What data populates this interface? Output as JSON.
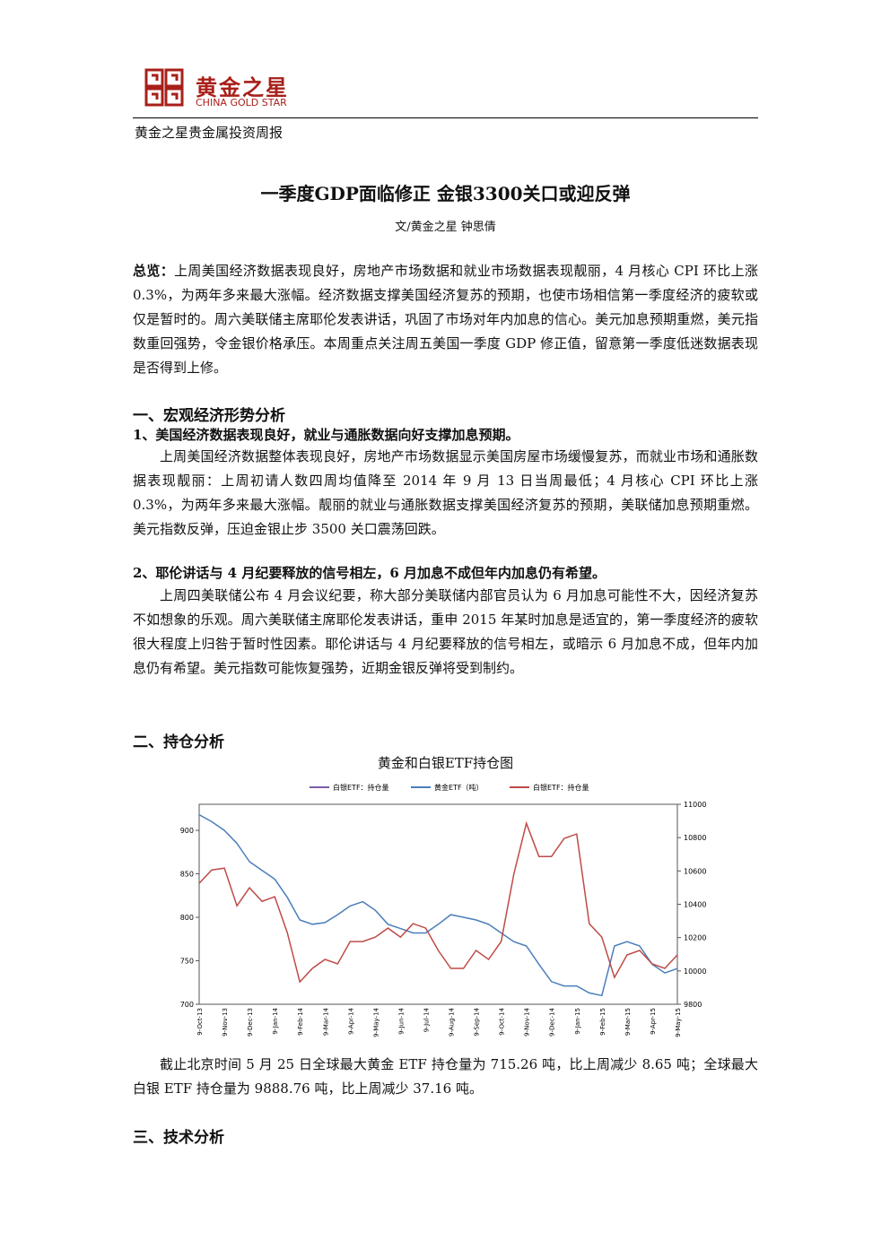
{
  "header": {
    "logo_cn": "黄金之星",
    "logo_en": "CHINA GOLD STAR",
    "report": "黄金之星贵金属投资周报"
  },
  "title": "一季度GDP面临修正 金银3300关口或迎反弹",
  "author": "文/黄金之星 钟思倩",
  "summary": {
    "label": "总览：",
    "text": "上周美国经济数据表现良好，房地产市场数据和就业市场数据表现靓丽，4 月核心 CPI 环比上涨 0.3%，为两年多来最大涨幅。经济数据支撑美国经济复苏的预期，也使市场相信第一季度经济的疲软或仅是暂时的。周六美联储主席耶伦发表讲话，巩固了市场对年内加息的信心。美元加息预期重燃，美元指数重回强势，令金银价格承压。本周重点关注周五美国一季度 GDP 修正值，留意第一季度低迷数据表现是否得到上修。"
  },
  "section1": {
    "heading": "一、宏观经济形势分析",
    "sub1": "1、美国经济数据表现良好，就业与通胀数据向好支撑加息预期。",
    "para1": "上周美国经济数据整体表现良好，房地产市场数据显示美国房屋市场缓慢复苏，而就业市场和通胀数据表现靓丽：上周初请人数四周均值降至 2014 年 9 月 13 日当周最低；4 月核心 CPI 环比上涨 0.3%，为两年多来最大涨幅。靓丽的就业与通胀数据支撑美国经济复苏的预期，美联储加息预期重燃。美元指数反弹，压迫金银止步 3500 关口震荡回跌。",
    "sub2": "2、耶伦讲话与 4 月纪要释放的信号相左，6 月加息不成但年内加息仍有希望。",
    "para2": "上周四美联储公布 4 月会议纪要，称大部分美联储内部官员认为 6 月加息可能性不大，因经济复苏不如想象的乐观。周六美联储主席耶伦发表讲话，重申 2015 年某时加息是适宜的，第一季度经济的疲软很大程度上归咎于暂时性因素。耶伦讲话与 4 月纪要释放的信号相左，或暗示 6 月加息不成，但年内加息仍有希望。美元指数可能恢复强势，近期金银反弹将受到制约。"
  },
  "section2": {
    "heading": "二、持仓分析",
    "para": "截止北京时间 5 月 25 日全球最大黄金 ETF 持仓量为 715.26 吨，比上周减少 8.65 吨；全球最大白银 ETF 持仓量为 9888.76 吨，比上周减少 37.16 吨。"
  },
  "section3": {
    "heading": "三、技术分析"
  },
  "chart_data": {
    "type": "line",
    "title": "黄金和白银ETF持仓图",
    "categories": [
      "9-Oct-13",
      null,
      "9-Nov-13",
      null,
      "9-Dec-13",
      null,
      "9-Jan-14",
      null,
      "9-Feb-14",
      null,
      "9-Mar-14",
      null,
      "9-Apr-14",
      null,
      "9-May-14",
      null,
      "9-Jun-14",
      null,
      "9-Jul-14",
      null,
      "9-Aug-14",
      null,
      "9-Sep-14",
      null,
      "9-Oct-14",
      null,
      "9-Nov-14",
      null,
      "9-Dec-14",
      null,
      "9-Jan-15",
      null,
      "9-Feb-15",
      null,
      "9-Mar-15",
      null,
      "9-Apr-15",
      null,
      "9-May-15"
    ],
    "series": [
      {
        "name": "白银ETF：持仓量",
        "color": "#7b5ea7",
        "axis": "y2",
        "values": [
          null,
          null,
          null,
          null,
          null,
          null,
          null,
          null,
          null,
          null,
          null,
          null,
          null,
          null,
          null,
          null,
          null,
          null,
          null,
          null,
          null,
          null,
          null,
          null,
          null,
          null,
          null,
          null,
          null,
          null,
          null,
          null,
          null,
          null,
          null,
          null,
          null,
          null,
          null
        ]
      },
      {
        "name": "黄金ETF（吨）",
        "color": "#4a7ebb",
        "values": [
          918,
          910,
          900,
          885,
          864,
          854,
          844,
          823,
          797,
          792,
          794,
          803,
          813,
          818,
          808,
          792,
          787,
          782,
          782,
          792,
          803,
          800,
          797,
          792,
          782,
          772,
          767,
          746,
          726,
          721,
          721,
          713,
          710,
          767,
          772,
          767,
          746,
          736,
          741
        ]
      },
      {
        "name": "白银ETF：持仓量",
        "color": "#be4b48",
        "axis": "y2",
        "values": [
          10526,
          10606,
          10617,
          10391,
          10499,
          10418,
          10445,
          10230,
          9934,
          10015,
          10069,
          10042,
          10176,
          10176,
          10203,
          10257,
          10203,
          10284,
          10257,
          10123,
          10015,
          10015,
          10123,
          10069,
          10176,
          10580,
          10886,
          10687,
          10687,
          10795,
          10822,
          10284,
          10203,
          9961,
          10096,
          10123,
          10042,
          10015,
          10096
        ]
      }
    ],
    "ylim": [
      700,
      930
    ],
    "yticks": [
      700,
      750,
      800,
      850,
      900
    ],
    "y2lim": [
      9800,
      11000
    ],
    "y2ticks": [
      9800,
      10000,
      10200,
      10400,
      10600,
      10800,
      11000
    ]
  }
}
